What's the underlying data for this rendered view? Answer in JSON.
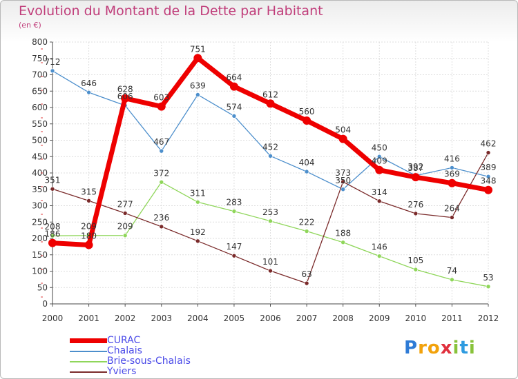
{
  "header": {
    "title": "Evolution du Montant de la Dette par Habitant",
    "subtitle": "(en €)"
  },
  "logo": {
    "text": "Proxiti",
    "letters": [
      "P",
      "r",
      "o",
      "x",
      "i",
      "t",
      "i"
    ],
    "letter_colors": [
      "#2e7bd6",
      "#f2a20c",
      "#f2a20c",
      "#e0303d",
      "#88c23a",
      "#2e9be0",
      "#88c23a"
    ]
  },
  "chart_data": {
    "type": "line",
    "title": "Evolution du Montant de la Dette par Habitant",
    "subtitle": "(en €)",
    "x": [
      "2000",
      "2001",
      "2002",
      "2003",
      "2004",
      "2005",
      "2006",
      "2007",
      "2008",
      "2009",
      "2010",
      "2011",
      "2012"
    ],
    "ylim": [
      0,
      800
    ],
    "yticks": [
      0,
      50,
      100,
      150,
      200,
      250,
      300,
      350,
      400,
      450,
      500,
      550,
      600,
      650,
      700,
      750,
      800
    ],
    "grid": true,
    "legend_position": "bottom-left",
    "series": [
      {
        "name": "CURAC",
        "color": "#ee0000",
        "width": 7,
        "marker": 6,
        "label_color": "#333333",
        "values": [
          186,
          180,
          628,
          603,
          751,
          664,
          612,
          560,
          504,
          409,
          387,
          369,
          348
        ],
        "labels": [
          "186",
          "180",
          "628",
          "603",
          "751",
          "664",
          "612",
          "560",
          "504",
          "409",
          "387",
          "369",
          "348"
        ]
      },
      {
        "name": "Chalais",
        "color": "#4d8fcc",
        "width": 1.3,
        "marker": 3,
        "label_color": "#333333",
        "values": [
          712,
          646,
          606,
          467,
          639,
          574,
          452,
          404,
          350,
          450,
          392,
          416,
          389
        ],
        "labels": [
          "712",
          "646",
          "606",
          "467",
          "639",
          "574",
          "452",
          "404",
          "350",
          "450",
          "392",
          "416",
          "389"
        ]
      },
      {
        "name": "Brie-sous-Chalais",
        "color": "#8fd65a",
        "width": 1.3,
        "marker": 3,
        "label_color": "#333333",
        "values": [
          208,
          209,
          209,
          372,
          311,
          283,
          253,
          222,
          188,
          146,
          105,
          74,
          53
        ],
        "labels": [
          "208",
          "209",
          "209",
          "372",
          "311",
          "283",
          "253",
          "222",
          "188",
          "146",
          "105",
          "74",
          "53"
        ]
      },
      {
        "name": "Yviers",
        "color": "#7a2a2a",
        "width": 1.3,
        "marker": 3,
        "label_color": "#333333",
        "values": [
          351,
          315,
          277,
          236,
          192,
          147,
          101,
          63,
          373,
          314,
          276,
          264,
          462
        ],
        "labels": [
          "351",
          "315",
          "277",
          "236",
          "192",
          "147",
          "101",
          "63",
          "373",
          "314",
          "276",
          "264",
          "462"
        ]
      }
    ]
  }
}
